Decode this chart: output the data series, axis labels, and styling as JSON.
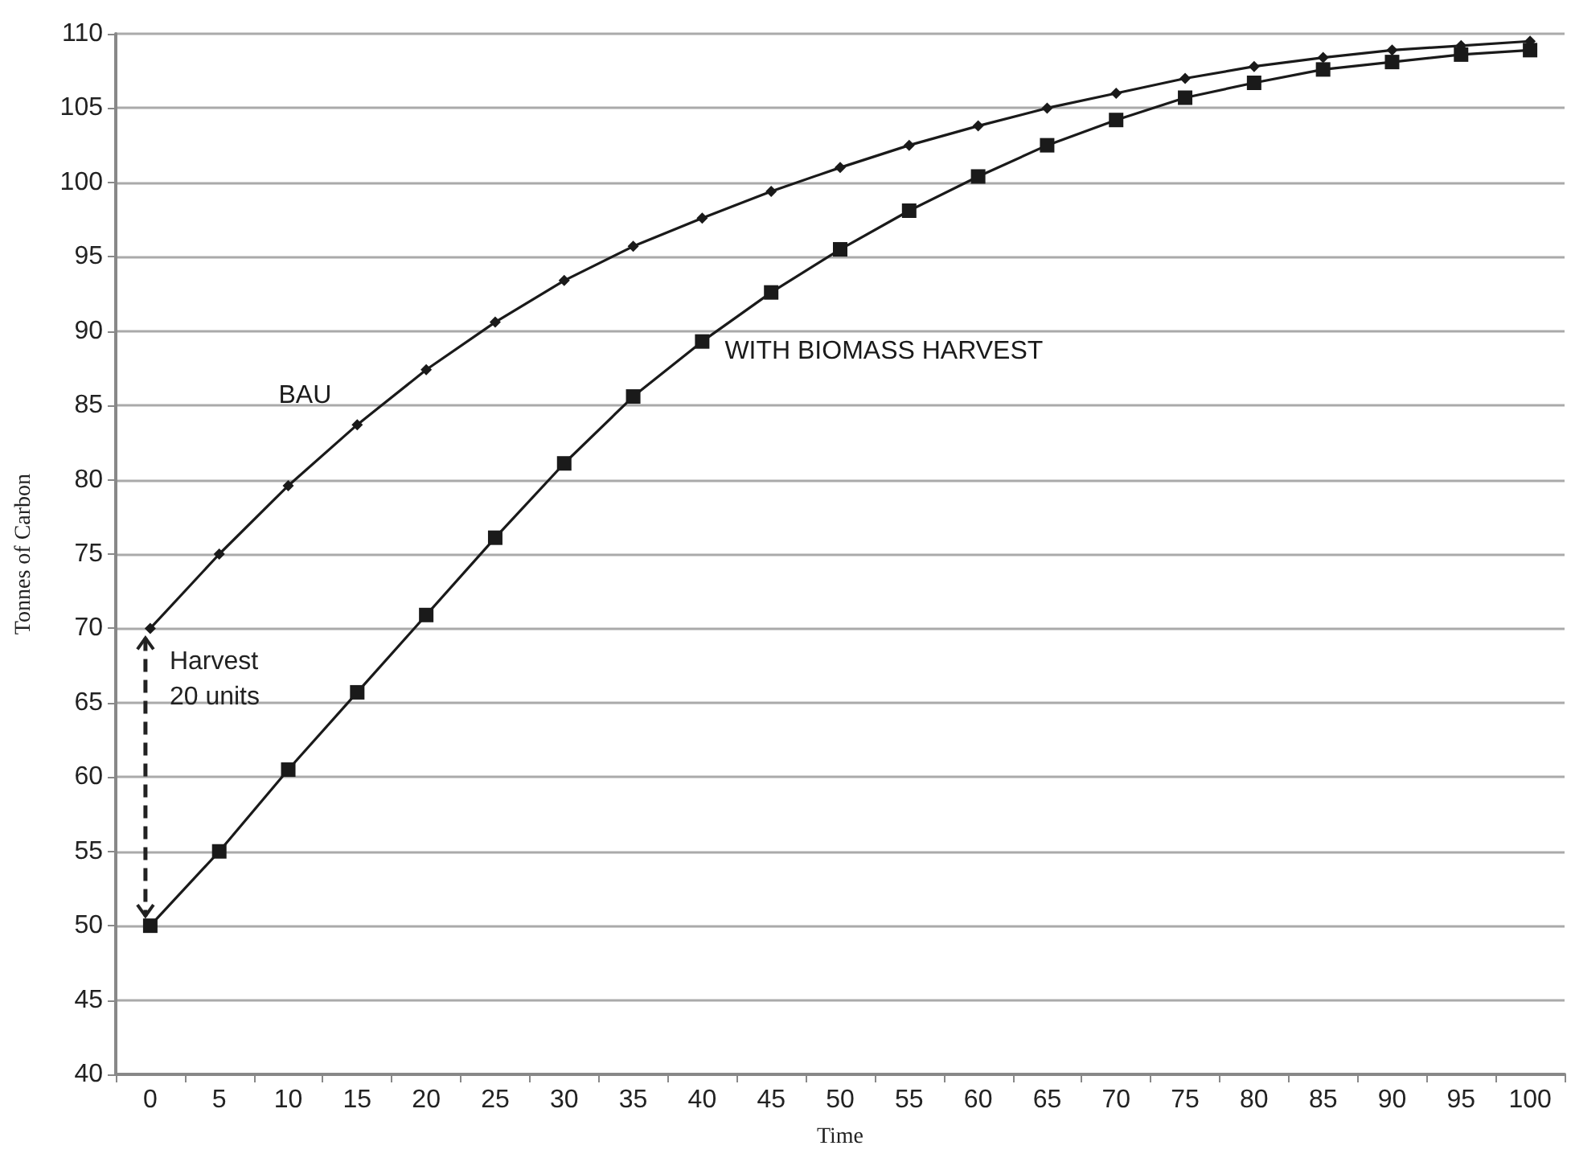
{
  "chart_data": {
    "type": "line",
    "xlabel": "Time",
    "ylabel": "Tonnes of Carbon",
    "categories": [
      "0",
      "5",
      "10",
      "15",
      "20",
      "25",
      "30",
      "35",
      "40",
      "45",
      "50",
      "55",
      "60",
      "65",
      "70",
      "75",
      "80",
      "85",
      "90",
      "95",
      "100"
    ],
    "series": [
      {
        "name": "BAU",
        "color": "#1a1a1a",
        "marker": "diamond",
        "values": [
          70,
          75,
          79.6,
          83.7,
          87.4,
          90.6,
          93.4,
          95.7,
          97.6,
          99.4,
          101.0,
          102.5,
          103.8,
          105.0,
          106.0,
          107.0,
          107.8,
          108.4,
          108.9,
          109.2,
          109.5
        ]
      },
      {
        "name": "WITH BIOMASS HARVEST",
        "color": "#1a1a1a",
        "marker": "square",
        "values": [
          50,
          55,
          60.5,
          65.7,
          70.9,
          76.1,
          81.1,
          85.6,
          89.3,
          92.6,
          95.5,
          98.1,
          100.4,
          102.5,
          104.2,
          105.7,
          106.7,
          107.6,
          108.1,
          108.6,
          108.9
        ]
      }
    ],
    "annotations": [
      {
        "text": "Harvest\n20 units",
        "x": "0",
        "y": 70
      }
    ],
    "ylim": [
      40,
      110
    ],
    "yticks": [
      40,
      45,
      50,
      55,
      60,
      65,
      70,
      75,
      80,
      85,
      90,
      95,
      100,
      105,
      110
    ],
    "grid": "y",
    "legend": false,
    "line_style": "solid"
  }
}
